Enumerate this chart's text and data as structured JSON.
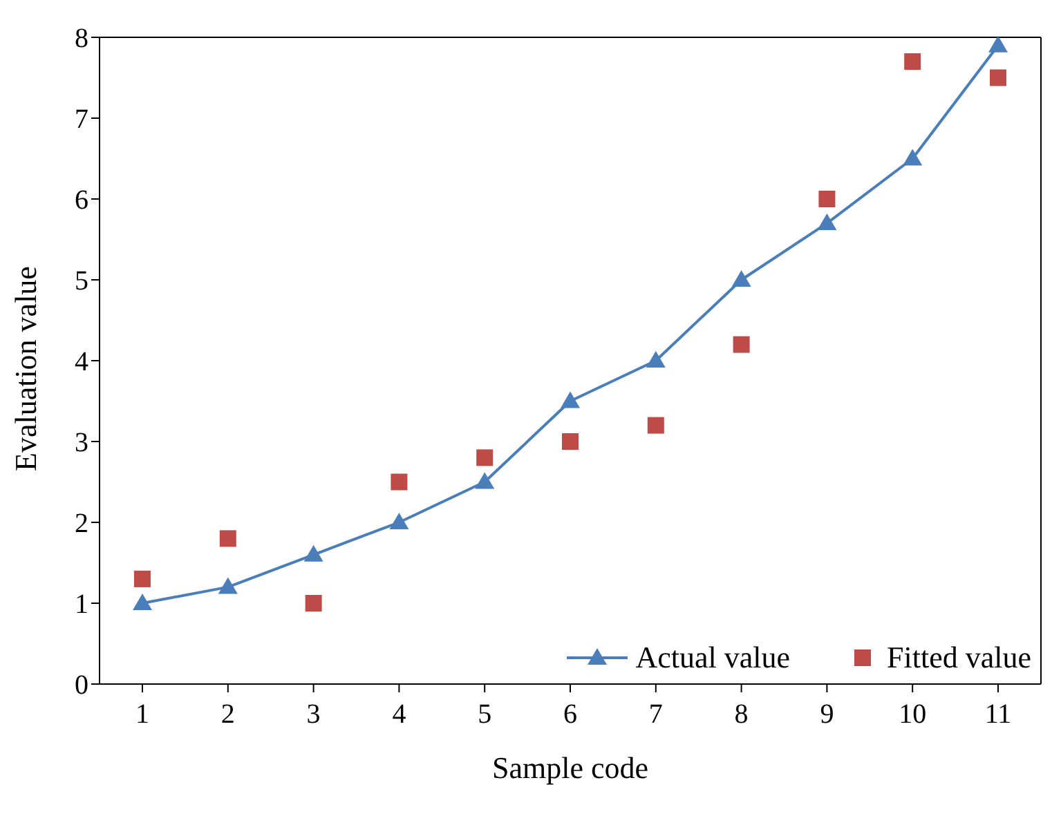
{
  "chart_data": {
    "type": "line",
    "xlabel": "Sample code",
    "ylabel": "Evaluation value",
    "categories": [
      "1",
      "2",
      "3",
      "4",
      "5",
      "6",
      "7",
      "8",
      "9",
      "10",
      "11"
    ],
    "series": [
      {
        "name": "Actual value",
        "color": "#4a7ebb",
        "marker": "triangle",
        "values": [
          1,
          1.2,
          1.6,
          2,
          2.5,
          3.5,
          4,
          5,
          5.7,
          6.5,
          7.9
        ]
      },
      {
        "name": "Fitted value",
        "type": "scatter",
        "color": "#be4b48",
        "marker": "square",
        "values": [
          1.3,
          1.8,
          1.0,
          2.5,
          2.8,
          3.0,
          3.2,
          4.2,
          6.0,
          7.7,
          7.5
        ]
      }
    ],
    "ylim": [
      0,
      8
    ],
    "yticks": [
      0,
      1,
      2,
      3,
      4,
      5,
      6,
      7,
      8
    ],
    "legend": "bottom right",
    "grid": false
  }
}
